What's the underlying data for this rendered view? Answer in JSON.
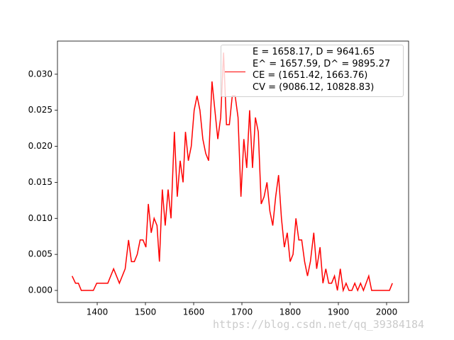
{
  "chart_data": {
    "type": "line",
    "x": [
      1348,
      1355,
      1361,
      1367,
      1392,
      1399,
      1422,
      1434,
      1446,
      1458,
      1465,
      1471,
      1477,
      1483,
      1489,
      1495,
      1501,
      1506,
      1512,
      1518,
      1524,
      1529,
      1535,
      1541,
      1547,
      1553,
      1560,
      1566,
      1572,
      1578,
      1583,
      1589,
      1595,
      1601,
      1607,
      1613,
      1619,
      1625,
      1631,
      1638,
      1644,
      1650,
      1656,
      1662,
      1668,
      1674,
      1680,
      1686,
      1692,
      1698,
      1704,
      1710,
      1716,
      1722,
      1728,
      1734,
      1740,
      1746,
      1752,
      1758,
      1764,
      1770,
      1776,
      1782,
      1788,
      1794,
      1800,
      1806,
      1812,
      1818,
      1824,
      1830,
      1836,
      1842,
      1849,
      1855,
      1862,
      1868,
      1874,
      1880,
      1886,
      1892,
      1898,
      1904,
      1910,
      1916,
      1922,
      1928,
      1934,
      1940,
      1946,
      1952,
      1963,
      1969,
      2006,
      2012
    ],
    "series": [
      {
        "name": "E = 1658.17, D = 9641.65\nE^ = 1657.59, D^ = 9895.27\nCE = (1651.42, 1663.76)\nCV = (9086.12, 10828.83)",
        "color": "#ff0000",
        "values": [
          0.002,
          0.001,
          0.001,
          0.0,
          0.0,
          0.001,
          0.001,
          0.003,
          0.001,
          0.003,
          0.007,
          0.004,
          0.004,
          0.005,
          0.007,
          0.007,
          0.006,
          0.012,
          0.008,
          0.01,
          0.009,
          0.004,
          0.014,
          0.009,
          0.014,
          0.01,
          0.022,
          0.013,
          0.018,
          0.015,
          0.022,
          0.018,
          0.02,
          0.025,
          0.027,
          0.025,
          0.021,
          0.019,
          0.018,
          0.029,
          0.025,
          0.021,
          0.024,
          0.033,
          0.023,
          0.023,
          0.027,
          0.027,
          0.024,
          0.013,
          0.021,
          0.017,
          0.025,
          0.017,
          0.024,
          0.022,
          0.012,
          0.013,
          0.015,
          0.011,
          0.009,
          0.013,
          0.016,
          0.01,
          0.006,
          0.008,
          0.004,
          0.005,
          0.01,
          0.007,
          0.007,
          0.004,
          0.002,
          0.004,
          0.008,
          0.003,
          0.006,
          0.001,
          0.003,
          0.001,
          0.001,
          0.002,
          0.0,
          0.003,
          0.0,
          0.001,
          0.0,
          0.0,
          0.001,
          0.0,
          0.001,
          0.0,
          0.002,
          0.0,
          0.0,
          0.001
        ]
      }
    ],
    "xlim": [
      1317.6,
      2045.6
    ],
    "xticks": [
      1400,
      1500,
      1600,
      1700,
      1800,
      1900,
      2000
    ],
    "ylim": [
      -0.00167,
      0.0346
    ],
    "yticks": [
      {
        "value": 0,
        "label": "0.000"
      },
      {
        "value": 0.005,
        "label": "0.005"
      },
      {
        "value": 0.01,
        "label": "0.010"
      },
      {
        "value": 0.015,
        "label": "0.015"
      },
      {
        "value": 0.02,
        "label": "0.020"
      },
      {
        "value": 0.025,
        "label": "0.025"
      },
      {
        "value": 0.03,
        "label": "0.030"
      }
    ],
    "legend": "upper right",
    "watermark": "https://blog.csdn.net/qq_39384184"
  }
}
